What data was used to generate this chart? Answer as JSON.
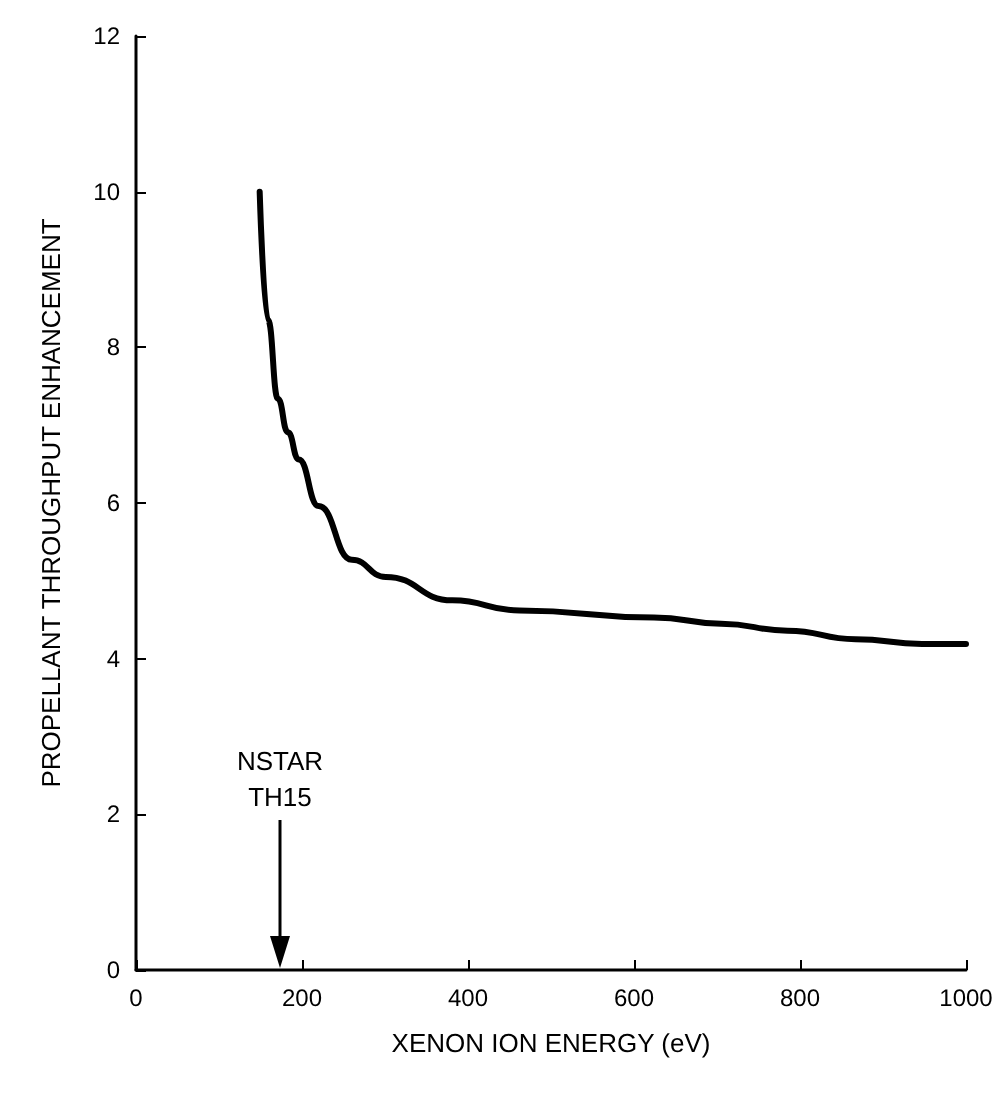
{
  "chart_data": {
    "type": "line",
    "xlabel": "XENON ION ENERGY (eV)",
    "ylabel": "PROPELLANT THROUGHPUT ENHANCEMENT",
    "series": [
      {
        "color": "#000000",
        "x": [
          149,
          159,
          171,
          183,
          196,
          220,
          260,
          301,
          381,
          462,
          624,
          705,
          785,
          867,
          947,
          1000
        ],
        "values": [
          10,
          8.35,
          7.34,
          6.91,
          6.56,
          5.96,
          5.27,
          5.05,
          4.75,
          4.62,
          4.53,
          4.45,
          4.36,
          4.25,
          4.19,
          4.19
        ]
      }
    ],
    "xlim": [
      0,
      1000
    ],
    "xticks": [
      0,
      200,
      400,
      600,
      800,
      1000
    ],
    "ylim": [
      0,
      12
    ],
    "yticks": [
      0,
      2,
      4,
      6,
      8,
      10,
      12
    ],
    "grid": false,
    "marker": "none",
    "line_style": "solid",
    "annotations": [
      "NSTAR\nTH15"
    ]
  }
}
